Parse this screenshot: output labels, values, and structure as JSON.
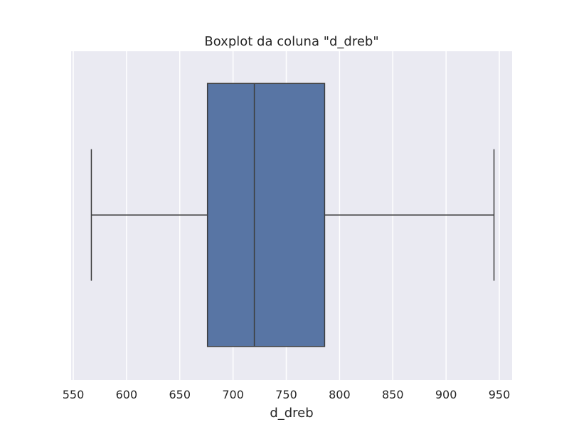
{
  "chart_data": {
    "type": "boxplot",
    "title": "Boxplot da coluna \"d_dreb\"",
    "xlabel": "d_dreb",
    "ylabel": "",
    "orientation": "horizontal",
    "xlim": [
      548,
      962
    ],
    "ticks": [
      550,
      600,
      650,
      700,
      750,
      800,
      850,
      900,
      950
    ],
    "tick_labels": [
      "550",
      "600",
      "650",
      "700",
      "750",
      "800",
      "850",
      "900",
      "950"
    ],
    "grid": true,
    "box": {
      "whisker_low": 567,
      "q1": 676,
      "median": 720,
      "q3": 786,
      "whisker_high": 945
    },
    "colors": {
      "plot_background": "#eaeaf2",
      "grid": "#ffffff",
      "box_fill": "#5875a4",
      "line": "#3d3d3d",
      "text": "#262626"
    }
  }
}
